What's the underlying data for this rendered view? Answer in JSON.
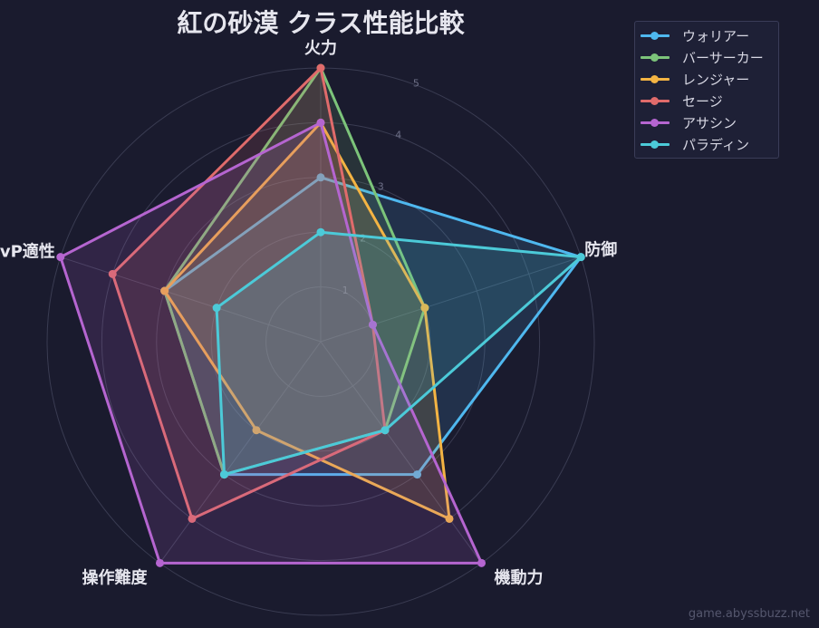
{
  "chart_data": {
    "type": "radar",
    "title": "紅の砂漠 クラス性能比較",
    "axes": [
      "火力",
      "防御",
      "機動力",
      "操作難度",
      "PvP適性"
    ],
    "rmax": 5,
    "rticks": [
      1,
      2,
      3,
      4,
      5
    ],
    "grid": true,
    "legend_position": "top-right",
    "series": [
      {
        "name": "ウォリアー",
        "color": "#4fb8ef",
        "values": [
          3,
          5,
          3,
          3,
          3
        ]
      },
      {
        "name": "バーサーカー",
        "color": "#7cc47a",
        "values": [
          5,
          2,
          2,
          3,
          3
        ]
      },
      {
        "name": "レンジャー",
        "color": "#f4b443",
        "values": [
          4,
          2,
          4,
          2,
          3
        ]
      },
      {
        "name": "セージ",
        "color": "#e06b6b",
        "values": [
          5,
          1,
          2,
          4,
          4
        ]
      },
      {
        "name": "アサシン",
        "color": "#b565d0",
        "values": [
          4,
          1,
          5,
          5,
          5
        ]
      },
      {
        "name": "パラディン",
        "color": "#4ccad8",
        "values": [
          2,
          5,
          2,
          3,
          2
        ]
      }
    ]
  },
  "watermark": "game.abyssbuzz.net"
}
